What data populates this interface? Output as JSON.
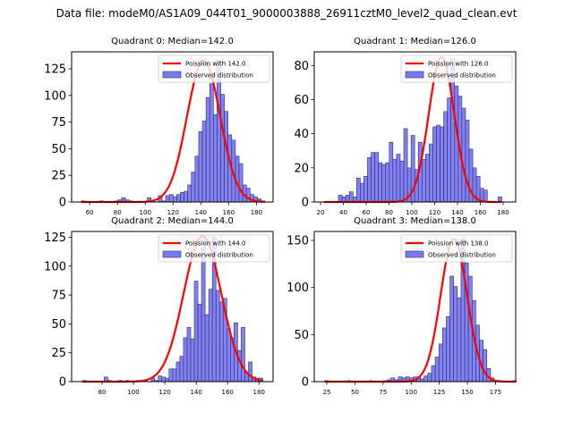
{
  "figure": {
    "suptitle": "Data file: modeM0/AS1A09_044T01_9000003888_26911cztM0_level2_quad_clean.evt"
  },
  "colors": {
    "bar_fill": "#7b7bf0",
    "bar_edge": "#2a2a70",
    "poisson_line": "#ff0000",
    "axes": "#000000"
  },
  "chart_data": [
    {
      "type": "bar",
      "title": "Quadrant 0: Median=142.0",
      "xlabel": "",
      "ylabel": "",
      "xlim": [
        47,
        192
      ],
      "ylim": [
        0,
        141
      ],
      "xticks": [
        60,
        80,
        100,
        120,
        140,
        160,
        180
      ],
      "yticks": [
        0,
        25,
        50,
        75,
        100,
        125
      ],
      "grid": false,
      "legend": {
        "position": "top-right",
        "entries": [
          "Poission with 142.0",
          "Observed distribution"
        ]
      },
      "bins": {
        "start": 54,
        "width": 2.64
      },
      "values": [
        1,
        0,
        0,
        0,
        0,
        1,
        0,
        0,
        0,
        1,
        2,
        4,
        2,
        1,
        0,
        0,
        0,
        0,
        4,
        1,
        0,
        6,
        1,
        6,
        7,
        5,
        7,
        9,
        10,
        16,
        28,
        43,
        66,
        76,
        98,
        111,
        82,
        132,
        101,
        85,
        63,
        58,
        43,
        36,
        16,
        13,
        7,
        5,
        3,
        1
      ],
      "series": [
        {
          "name": "Poission with 142.0",
          "type": "line",
          "mean": 142.0,
          "peak": 133
        }
      ]
    },
    {
      "type": "bar",
      "title": "Quadrant 1: Median=126.0",
      "xlabel": "",
      "ylabel": "",
      "xlim": [
        14.5,
        191
      ],
      "ylim": [
        0,
        88
      ],
      "xticks": [
        20,
        40,
        60,
        80,
        100,
        120,
        140,
        160,
        180
      ],
      "yticks": [
        0,
        20,
        40,
        60,
        80
      ],
      "grid": false,
      "legend": {
        "position": "top-right",
        "entries": [
          "Poission with 126.0",
          "Observed distribution"
        ]
      },
      "bins": {
        "start": 23,
        "width": 3.18
      },
      "values": [
        0,
        0,
        0,
        0,
        4,
        3,
        4,
        6,
        3,
        14,
        11,
        15,
        26,
        29,
        29,
        23,
        22,
        23,
        35,
        25,
        28,
        24,
        43,
        20,
        39,
        19,
        35,
        25,
        28,
        34,
        44,
        45,
        44,
        53,
        61,
        84,
        68,
        62,
        55,
        48,
        31,
        20,
        15,
        8,
        7,
        0,
        0,
        0,
        3
      ],
      "series": [
        {
          "name": "Poission with 126.0",
          "type": "line",
          "mean": 126.0,
          "peak": 85
        }
      ]
    },
    {
      "type": "bar",
      "title": "Quadrant 2: Median=144.0",
      "xlabel": "",
      "ylabel": "",
      "xlim": [
        60.6,
        189
      ],
      "ylim": [
        0,
        130
      ],
      "xticks": [
        80,
        100,
        120,
        140,
        160,
        180
      ],
      "yticks": [
        0,
        25,
        50,
        75,
        100,
        125
      ],
      "grid": false,
      "legend": {
        "position": "top-right",
        "entries": [
          "Poission with 144.0",
          "Observed distribution"
        ]
      },
      "bins": {
        "start": 67.5,
        "width": 2.3
      },
      "values": [
        1,
        0,
        0,
        0,
        0,
        0,
        4,
        1,
        0,
        0,
        1,
        0,
        1,
        0,
        0,
        1,
        0,
        1,
        0,
        3,
        1,
        5,
        4,
        3,
        11,
        11,
        17,
        22,
        38,
        47,
        37,
        87,
        67,
        116,
        58,
        80,
        125,
        79,
        69,
        72,
        46,
        38,
        51,
        27,
        47,
        8,
        17,
        4,
        3,
        3
      ],
      "series": [
        {
          "name": "Poission with 144.0",
          "type": "line",
          "mean": 144.0,
          "peak": 126
        }
      ]
    },
    {
      "type": "bar",
      "title": "Quadrant 3: Median=138.0",
      "xlabel": "",
      "ylabel": "",
      "xlim": [
        13.8,
        193
      ],
      "ylim": [
        0,
        159.5
      ],
      "xticks": [
        25,
        50,
        75,
        100,
        125,
        150,
        175
      ],
      "yticks": [
        0,
        50,
        100,
        150
      ],
      "grid": false,
      "legend": {
        "position": "top-right",
        "entries": [
          "Poission with 138.0",
          "Observed distribution"
        ]
      },
      "bins": {
        "start": 23,
        "width": 3.28
      },
      "values": [
        1,
        0,
        0,
        0,
        0,
        0,
        1,
        0,
        0,
        0,
        0,
        0,
        1,
        0,
        0,
        0,
        1,
        2,
        4,
        2,
        5,
        4,
        5,
        4,
        5,
        5,
        3,
        6,
        9,
        17,
        26,
        40,
        57,
        69,
        112,
        101,
        89,
        152,
        126,
        112,
        86,
        60,
        44,
        34,
        14,
        4,
        1,
        1,
        0,
        0,
        0,
        1
      ],
      "series": [
        {
          "name": "Poission with 138.0",
          "type": "line",
          "mean": 138.0,
          "peak": 152
        }
      ]
    }
  ]
}
